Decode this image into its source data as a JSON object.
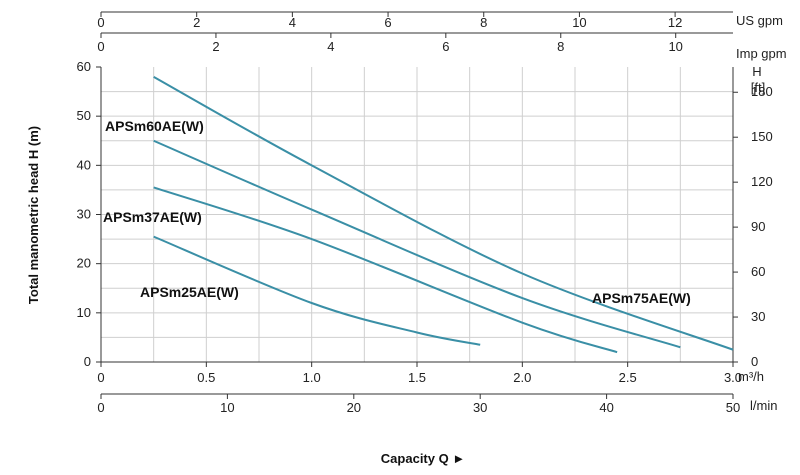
{
  "chart_data": {
    "type": "line",
    "xlabel": "Capacity Q ►",
    "ylabel": "Total manometric head H (m)",
    "right_axis_label": "H",
    "right_axis_unit": "[ft]",
    "x_unit": "m³/h",
    "xlim": [
      0,
      3.0
    ],
    "ylim": [
      0,
      60
    ],
    "grid": true,
    "y_ticks": [
      "0",
      "10",
      "20",
      "30",
      "40",
      "50",
      "60"
    ],
    "y_ticks_ft": [
      "0",
      "30",
      "60",
      "90",
      "120",
      "150",
      "180"
    ],
    "x_ticks_m3h": [
      "0",
      "0.5",
      "1.0",
      "1.5",
      "2.0",
      "2.5",
      "3.0"
    ],
    "x_ticks_lmin": [
      "0",
      "10",
      "20",
      "30",
      "40",
      "50"
    ],
    "x_unit_lmin": "l/min",
    "top_ticks_usgpm": [
      "0",
      "2",
      "4",
      "6",
      "8",
      "10",
      "12"
    ],
    "top_unit_usgpm": "US gpm",
    "top_ticks_impgpm": [
      "0",
      "2",
      "4",
      "6",
      "8",
      "10"
    ],
    "top_unit_impgpm": "Imp gpm",
    "series": [
      {
        "name": "APSm75AE(W)",
        "x": [
          0.25,
          1.0,
          2.0,
          3.0
        ],
        "y": [
          58,
          40,
          18,
          2.5
        ]
      },
      {
        "name": "APSm60AE(W)",
        "x": [
          0.25,
          1.0,
          2.0,
          2.75
        ],
        "y": [
          45,
          31,
          13,
          3
        ]
      },
      {
        "name": "APSm37AE(W)",
        "x": [
          0.25,
          1.0,
          2.0,
          2.45
        ],
        "y": [
          35.5,
          25,
          8,
          2
        ]
      },
      {
        "name": "APSm25AE(W)",
        "x": [
          0.25,
          1.0,
          1.5,
          1.8
        ],
        "y": [
          25.5,
          12,
          6,
          3.5
        ]
      }
    ],
    "color": "#3a8fa6"
  }
}
